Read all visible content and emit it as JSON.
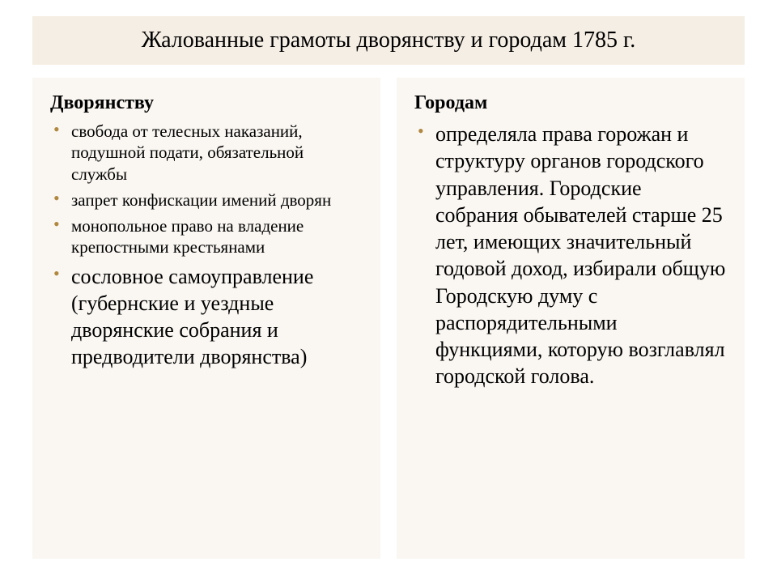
{
  "title": "Жалованные грамоты дворянству и городам 1785 г.",
  "leftColumn": {
    "heading": "Дворянству",
    "items": [
      {
        "text": "свобода от телесных наказаний, подушной подати, обязательной службы",
        "size": "small"
      },
      {
        "text": "запрет конфискации имений дворян",
        "size": "small"
      },
      {
        "text": "монопольное право на владение крепостными крестьянами",
        "size": "small"
      },
      {
        "text": "сословное самоуправление (губернские и уездные дворянские собрания и предводители дворянства)",
        "size": "large"
      }
    ]
  },
  "rightColumn": {
    "heading": "Городам",
    "items": [
      {
        "text": "определяла права горожан и структуру органов городского управления. Городские собрания обывателей старше 25 лет, имеющих значительный годовой доход, избирали общую Городскую думу с распорядительными функциями, которую возглавлял городской голова.",
        "size": "large"
      }
    ]
  },
  "colors": {
    "titleBg": "#f5eee4",
    "columnBg": "#faf7f2",
    "bullet": "#b08840",
    "text": "#000000",
    "pageBg": "#ffffff"
  },
  "typography": {
    "titleFontSize": 28,
    "headingFontSize": 24,
    "smallItemFontSize": 21,
    "largeItemFontSize": 26
  }
}
